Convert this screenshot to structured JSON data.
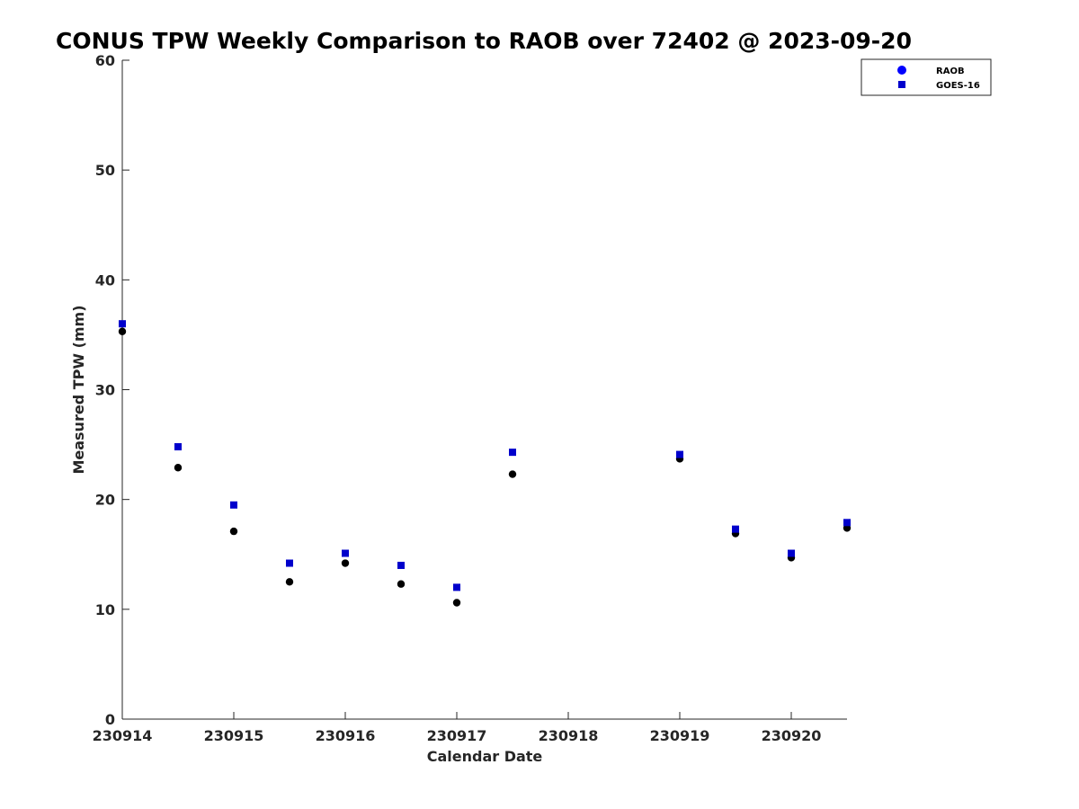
{
  "chart_data": {
    "type": "scatter",
    "title": "CONUS TPW Weekly Comparison to RAOB over 72402 @ 2023-09-20",
    "xlabel": "Calendar Date",
    "ylabel": "Measured TPW (mm)",
    "xlim": [
      "2023-09-14",
      "2023-09-20 12:00"
    ],
    "ylim": [
      0,
      60
    ],
    "yticks": [
      0,
      10,
      20,
      30,
      40,
      50,
      60
    ],
    "xtick_values": [
      "2023-09-14",
      "2023-09-15",
      "2023-09-16",
      "2023-09-17",
      "2023-09-18",
      "2023-09-19",
      "2023-09-20"
    ],
    "xtick_labels": [
      "230914",
      "230915",
      "230916",
      "230917",
      "230918",
      "230919",
      "230920"
    ],
    "grid": false,
    "legend_position": "top-right",
    "series": [
      {
        "name": "RAOB",
        "marker": "circle",
        "legend_color": "#0000ff",
        "color": "#000000",
        "points": [
          {
            "x": "2023-09-14 00:00",
            "y": 35.3
          },
          {
            "x": "2023-09-14 12:00",
            "y": 22.9
          },
          {
            "x": "2023-09-15 00:00",
            "y": 17.1
          },
          {
            "x": "2023-09-15 12:00",
            "y": 12.5
          },
          {
            "x": "2023-09-16 00:00",
            "y": 14.2
          },
          {
            "x": "2023-09-16 12:00",
            "y": 12.3
          },
          {
            "x": "2023-09-17 00:00",
            "y": 10.6
          },
          {
            "x": "2023-09-17 12:00",
            "y": 22.3
          },
          {
            "x": "2023-09-19 00:00",
            "y": 23.7
          },
          {
            "x": "2023-09-19 12:00",
            "y": 16.9
          },
          {
            "x": "2023-09-20 00:00",
            "y": 14.7
          },
          {
            "x": "2023-09-20 12:00",
            "y": 17.4
          }
        ]
      },
      {
        "name": "GOES-16",
        "marker": "square",
        "color": "#0000cc",
        "points": [
          {
            "x": "2023-09-14 00:00",
            "y": 36.0
          },
          {
            "x": "2023-09-14 12:00",
            "y": 24.8
          },
          {
            "x": "2023-09-15 00:00",
            "y": 19.5
          },
          {
            "x": "2023-09-15 12:00",
            "y": 14.2
          },
          {
            "x": "2023-09-16 00:00",
            "y": 15.1
          },
          {
            "x": "2023-09-16 12:00",
            "y": 14.0
          },
          {
            "x": "2023-09-17 00:00",
            "y": 12.0
          },
          {
            "x": "2023-09-17 12:00",
            "y": 24.3
          },
          {
            "x": "2023-09-19 00:00",
            "y": 24.1
          },
          {
            "x": "2023-09-19 12:00",
            "y": 17.3
          },
          {
            "x": "2023-09-20 00:00",
            "y": 15.1
          },
          {
            "x": "2023-09-20 12:00",
            "y": 17.9
          }
        ]
      }
    ]
  }
}
